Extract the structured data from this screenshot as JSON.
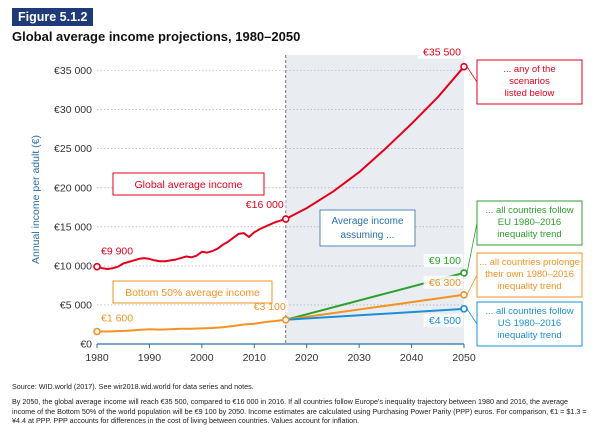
{
  "figure_label": "Figure 5.1.2",
  "title": "Global average income projections, 1980–2050",
  "source_note": "Source: WID.world (2017). See wir2018.wid.world for data series and notes.",
  "explanatory_note": "By 2050, the global average income will reach €35 500, compared to €16 000 in 2016. If all countries follow Europe's inequality trajectory between 1980 and 2016, the average income of the Bottom 50% of the world population will be €9 100 by 2050. Income estimates are calculated using Purchasing Power Parity (PPP) euros. For comparison, €1 = $1.3 = ¥4.4 at PPP. PPP accounts for differences in the cost of living between countries. Values account for inflation.",
  "colors": {
    "global": "#e3001b",
    "bottom50": "#f39325",
    "eu": "#2ca02c",
    "prolong": "#f39325",
    "us": "#1a8fd8",
    "axis": "#2a6fa8",
    "projection_bg": "#e9ecf1"
  },
  "chart_data": {
    "type": "line",
    "ylabel": "Annual income per adult (€)",
    "xlim": [
      1980,
      2050
    ],
    "ylim": [
      0,
      37000
    ],
    "x_ticks": [
      1980,
      1990,
      2000,
      2010,
      2020,
      2030,
      2040,
      2050
    ],
    "x_tick_labels": [
      "1980",
      "1990",
      "2000",
      "2010",
      "2020",
      "2030",
      "2040",
      "2050"
    ],
    "y_ticks": [
      0,
      5000,
      10000,
      15000,
      20000,
      25000,
      30000,
      35000
    ],
    "y_tick_labels": [
      "€0",
      "€5 000",
      "€10 000",
      "€15 000",
      "€20 000",
      "€25 000",
      "€30 000",
      "€35 000"
    ],
    "projection_start": 2016,
    "projection_label": "Average income assuming ...",
    "series": [
      {
        "key": "global",
        "name": "Global average income",
        "x": [
          1980,
          1981,
          1982,
          1983,
          1984,
          1985,
          1986,
          1987,
          1988,
          1989,
          1990,
          1991,
          1992,
          1993,
          1994,
          1995,
          1996,
          1997,
          1998,
          1999,
          2000,
          2001,
          2002,
          2003,
          2004,
          2005,
          2006,
          2007,
          2008,
          2009,
          2010,
          2011,
          2012,
          2013,
          2014,
          2015,
          2016
        ],
        "y": [
          9900,
          9700,
          9600,
          9700,
          9900,
          10300,
          10500,
          10700,
          10900,
          11000,
          10900,
          10700,
          10600,
          10600,
          10700,
          10800,
          11000,
          11200,
          11100,
          11300,
          11800,
          11700,
          11900,
          12200,
          12700,
          13100,
          13600,
          14100,
          14200,
          13700,
          14300,
          14700,
          15000,
          15300,
          15600,
          15800,
          16000
        ],
        "proj_x": [
          2016,
          2020,
          2025,
          2030,
          2035,
          2040,
          2045,
          2050
        ],
        "proj_y": [
          16000,
          17400,
          19500,
          22000,
          25000,
          28200,
          31600,
          35500
        ]
      },
      {
        "key": "bottom50",
        "name": "Bottom 50% average income",
        "x": [
          1980,
          1982,
          1984,
          1986,
          1988,
          1990,
          1992,
          1994,
          1996,
          1998,
          2000,
          2002,
          2004,
          2006,
          2008,
          2010,
          2012,
          2014,
          2016
        ],
        "y": [
          1600,
          1600,
          1650,
          1700,
          1800,
          1900,
          1850,
          1900,
          1950,
          1950,
          2000,
          2050,
          2150,
          2300,
          2500,
          2600,
          2800,
          2950,
          3100
        ]
      },
      {
        "key": "eu",
        "name": "... all countries follow EU 1980–2016 inequality trend",
        "x": [
          2016,
          2050
        ],
        "y": [
          3100,
          9100
        ]
      },
      {
        "key": "prolong",
        "name": "... all countries prolonge their own 1980–2016 inequality trend",
        "x": [
          2016,
          2050
        ],
        "y": [
          3100,
          6300
        ]
      },
      {
        "key": "us",
        "name": "... all countries follow US 1980–2016 inequality trend",
        "x": [
          2016,
          2050
        ],
        "y": [
          3100,
          4500
        ]
      }
    ],
    "data_labels": [
      {
        "key": "global",
        "text": "€9 900"
      },
      {
        "key": "global",
        "text": "€16 000"
      },
      {
        "key": "global",
        "text": "€35 500"
      },
      {
        "key": "bottom50",
        "text": "€1 600"
      },
      {
        "key": "bottom50",
        "text": "€3 100"
      },
      {
        "key": "eu",
        "text": "€9 100"
      },
      {
        "key": "prolong",
        "text": "€6 300"
      },
      {
        "key": "us",
        "text": "€4 500"
      }
    ],
    "series_boxes": [
      {
        "key": "global",
        "text": "Global average income"
      },
      {
        "key": "bottom50",
        "text": "Bottom 50% average income"
      }
    ],
    "scenario_boxes": [
      {
        "key": "global",
        "lines": [
          "... any of the",
          "scenarios",
          "listed below"
        ]
      },
      {
        "key": "eu",
        "lines": [
          "... all countries follow",
          "EU 1980–2016",
          "inequality trend"
        ]
      },
      {
        "key": "prolong",
        "lines": [
          "... all countries prolonge",
          "their own 1980–2016",
          "inequality trend"
        ]
      },
      {
        "key": "us",
        "lines": [
          "... all countries follow",
          "US 1980–2016",
          "inequality trend"
        ]
      }
    ]
  }
}
